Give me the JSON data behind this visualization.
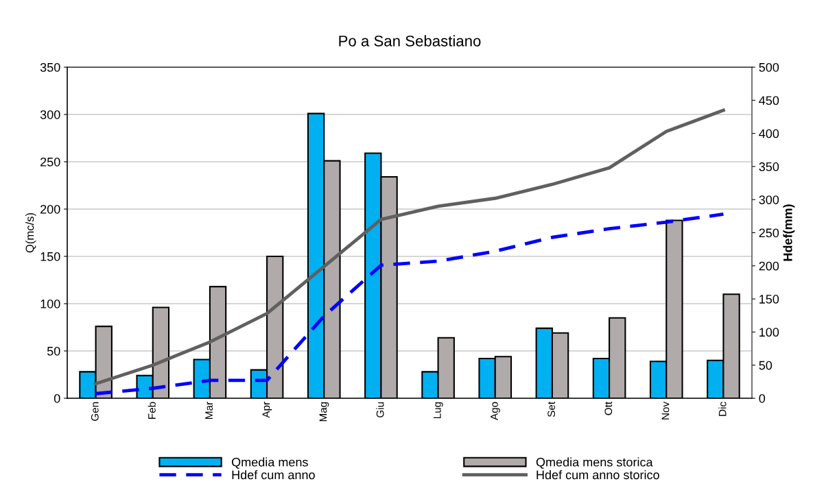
{
  "chart_data": {
    "type": "bar",
    "title": "Po a San Sebastiano",
    "ylabel": "Q(mc/s)",
    "y2label": "Hdef(mm)",
    "categories": [
      "Gen",
      "Feb",
      "Mar",
      "Apr",
      "Mag",
      "Giu",
      "Lug",
      "Ago",
      "Set",
      "Ott",
      "Nov",
      "Dic"
    ],
    "series": [
      {
        "name": "Qmedia mens",
        "color": "#00b0f0",
        "values": [
          28,
          24,
          41,
          30,
          301,
          259,
          28,
          42,
          74,
          42,
          39,
          40
        ]
      },
      {
        "name": "Qmedia mens storica",
        "color": "#b0aaaa",
        "values": [
          76,
          96,
          118,
          150,
          251,
          234,
          64,
          44,
          69,
          85,
          188,
          110
        ]
      },
      {
        "name": "Hdef cum anno",
        "type": "line",
        "axis": "y2",
        "line_style": "dashed",
        "color": "#0000ff",
        "values": [
          7,
          15,
          27,
          27,
          124,
          201,
          207,
          222,
          243,
          256,
          266,
          278
        ]
      },
      {
        "name": "Hdef cum anno storico",
        "type": "line",
        "axis": "y2",
        "line_style": "solid",
        "color": "#606060",
        "values": [
          22,
          50,
          85,
          128,
          199,
          270,
          290,
          302,
          323,
          348,
          403,
          435
        ]
      }
    ],
    "ylim": [
      0,
      350
    ],
    "yticks": [
      0,
      50,
      100,
      150,
      200,
      250,
      300,
      350
    ],
    "y2lim": [
      0,
      500
    ],
    "y2ticks": [
      0,
      50,
      100,
      150,
      200,
      250,
      300,
      350,
      400,
      450,
      500
    ],
    "grid": "y",
    "legend": "bottom"
  }
}
